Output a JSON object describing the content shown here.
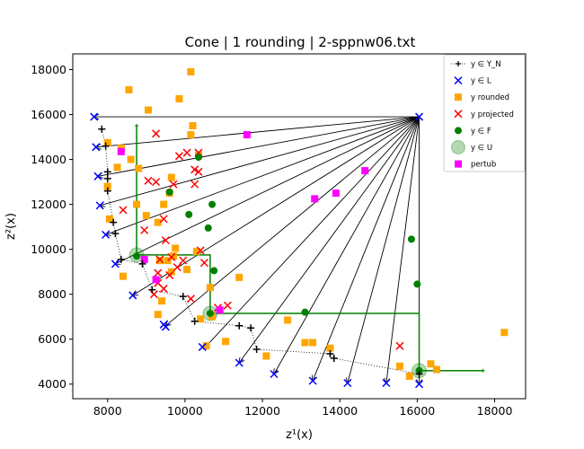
{
  "chart_data": {
    "type": "scatter",
    "title": "Cone | 1 rounding | 2-sppnw06.txt",
    "xlabel": "z¹(x)",
    "ylabel": "z²(x)",
    "xlim": [
      7100,
      18800
    ],
    "ylim": [
      3350,
      18700
    ],
    "xticks": [
      8000,
      10000,
      12000,
      14000,
      16000,
      18000
    ],
    "yticks": [
      4000,
      6000,
      8000,
      10000,
      12000,
      14000,
      16000,
      18000
    ],
    "xtick_labels": [
      "8000",
      "10000",
      "12000",
      "14000",
      "16000",
      "18000"
    ],
    "ytick_labels": [
      "4000",
      "6000",
      "8000",
      "10000",
      "12000",
      "14000",
      "16000",
      "18000"
    ],
    "legend_position": "top-right",
    "colors": {
      "yn": "#000000",
      "lower": "#0000ff",
      "rounded": "#ffa500",
      "projected": "#ff0000",
      "feasible": "#008000",
      "upper": "#008000",
      "pertub": "#ff00ff"
    },
    "legend": [
      {
        "key": "yn",
        "label": "y ∈ Y_N"
      },
      {
        "key": "lower",
        "label": "y ∈ L"
      },
      {
        "key": "rounded",
        "label": "y rounded"
      },
      {
        "key": "projected",
        "label": "y projected"
      },
      {
        "key": "feasible",
        "label": "y ∈ F"
      },
      {
        "key": "upper",
        "label": "y ∈ U"
      },
      {
        "key": "pertub",
        "label": "pertub"
      }
    ],
    "cone_apex": [
      16050,
      15900
    ],
    "cone_targets": [
      [
        7650,
        15900
      ],
      [
        7700,
        14550
      ],
      [
        7750,
        13250
      ],
      [
        7800,
        11950
      ],
      [
        7950,
        10650
      ],
      [
        8200,
        9350
      ],
      [
        8650,
        7950
      ],
      [
        9500,
        6600
      ],
      [
        10500,
        5600
      ],
      [
        11400,
        4950
      ],
      [
        12300,
        4450
      ],
      [
        13300,
        4150
      ],
      [
        14200,
        4050
      ],
      [
        15200,
        4050
      ],
      [
        16050,
        4000
      ]
    ],
    "yn_points": [
      [
        7850,
        15350
      ],
      [
        7950,
        14600
      ],
      [
        8000,
        13450
      ],
      [
        8000,
        13150
      ],
      [
        8000,
        12600
      ],
      [
        8150,
        11200
      ],
      [
        8200,
        10700
      ],
      [
        8350,
        9550
      ],
      [
        8900,
        9350
      ],
      [
        9150,
        8200
      ],
      [
        9950,
        7900
      ],
      [
        10250,
        6800
      ],
      [
        11400,
        6600
      ],
      [
        11700,
        6500
      ],
      [
        11850,
        5550
      ],
      [
        13750,
        5350
      ],
      [
        13850,
        5150
      ],
      [
        16050,
        4450
      ]
    ],
    "lower_points": [
      [
        7650,
        15900
      ],
      [
        7700,
        14550
      ],
      [
        7750,
        13250
      ],
      [
        7800,
        11950
      ],
      [
        7950,
        10650
      ],
      [
        8200,
        9350
      ],
      [
        8650,
        7950
      ],
      [
        9450,
        6650
      ],
      [
        9500,
        6550
      ],
      [
        10450,
        5650
      ],
      [
        11400,
        4950
      ],
      [
        12300,
        4450
      ],
      [
        13300,
        4150
      ],
      [
        14200,
        4050
      ],
      [
        15200,
        4050
      ],
      [
        16050,
        4000
      ],
      [
        16050,
        15900
      ]
    ],
    "rounded_points": [
      [
        8000,
        14750
      ],
      [
        8000,
        12800
      ],
      [
        8050,
        11350
      ],
      [
        8250,
        13650
      ],
      [
        8350,
        14500
      ],
      [
        8400,
        8800
      ],
      [
        8550,
        17100
      ],
      [
        8600,
        14000
      ],
      [
        8750,
        12000
      ],
      [
        8800,
        13600
      ],
      [
        9000,
        11500
      ],
      [
        9050,
        16200
      ],
      [
        9300,
        7100
      ],
      [
        9300,
        11200
      ],
      [
        9350,
        9500
      ],
      [
        9400,
        7700
      ],
      [
        9450,
        12000
      ],
      [
        9550,
        9500
      ],
      [
        9600,
        12500
      ],
      [
        9650,
        13200
      ],
      [
        9650,
        9000
      ],
      [
        9700,
        9700
      ],
      [
        9750,
        10050
      ],
      [
        9850,
        16700
      ],
      [
        10050,
        9100
      ],
      [
        10150,
        17900
      ],
      [
        10150,
        15100
      ],
      [
        10200,
        15500
      ],
      [
        10300,
        9900
      ],
      [
        10350,
        14200
      ],
      [
        10400,
        6900
      ],
      [
        10550,
        5700
      ],
      [
        10650,
        8300
      ],
      [
        10700,
        7000
      ],
      [
        11050,
        5900
      ],
      [
        11400,
        8750
      ],
      [
        12100,
        5250
      ],
      [
        12650,
        6850
      ],
      [
        13100,
        5850
      ],
      [
        13300,
        5850
      ],
      [
        13750,
        5600
      ],
      [
        15550,
        4800
      ],
      [
        15800,
        4350
      ],
      [
        16350,
        4900
      ],
      [
        16500,
        4650
      ],
      [
        18250,
        6300
      ]
    ],
    "projected_points": [
      [
        8400,
        11750
      ],
      [
        8950,
        10850
      ],
      [
        9050,
        13050
      ],
      [
        9200,
        8000
      ],
      [
        9250,
        15150
      ],
      [
        9250,
        13000
      ],
      [
        9300,
        8950
      ],
      [
        9300,
        8500
      ],
      [
        9350,
        9550
      ],
      [
        9450,
        8250
      ],
      [
        9450,
        11350
      ],
      [
        9500,
        10400
      ],
      [
        9600,
        8850
      ],
      [
        9650,
        9650
      ],
      [
        9700,
        12900
      ],
      [
        9800,
        9200
      ],
      [
        9850,
        14150
      ],
      [
        9950,
        9500
      ],
      [
        10050,
        14300
      ],
      [
        10150,
        7800
      ],
      [
        10250,
        13550
      ],
      [
        10250,
        12900
      ],
      [
        10350,
        14300
      ],
      [
        10350,
        13450
      ],
      [
        10400,
        9950
      ],
      [
        10500,
        9400
      ],
      [
        10850,
        7400
      ],
      [
        11100,
        7500
      ],
      [
        15550,
        5700
      ]
    ],
    "feasible_points": [
      [
        8750,
        9700
      ],
      [
        9600,
        12550
      ],
      [
        10100,
        11550
      ],
      [
        10350,
        14100
      ],
      [
        10600,
        10950
      ],
      [
        10700,
        12000
      ],
      [
        10750,
        9050
      ],
      [
        10650,
        7150
      ],
      [
        13100,
        7200
      ],
      [
        15850,
        10450
      ],
      [
        16000,
        8450
      ],
      [
        16050,
        4600
      ]
    ],
    "upper_points": [
      [
        8750,
        9750
      ],
      [
        10650,
        7150
      ],
      [
        16050,
        4600
      ]
    ],
    "pertub_points": [
      [
        8350,
        14350
      ],
      [
        8950,
        9550
      ],
      [
        9250,
        8650
      ],
      [
        10900,
        7300
      ],
      [
        11600,
        15100
      ],
      [
        13350,
        12250
      ],
      [
        13900,
        12500
      ],
      [
        14650,
        13500
      ]
    ],
    "staircases": [
      {
        "points": [
          [
            8750,
            15500
          ],
          [
            8750,
            9750
          ],
          [
            10650,
            9750
          ],
          [
            10650,
            7150
          ],
          [
            16050,
            7150
          ],
          [
            16050,
            4600
          ],
          [
            17700,
            4600
          ]
        ]
      }
    ]
  }
}
